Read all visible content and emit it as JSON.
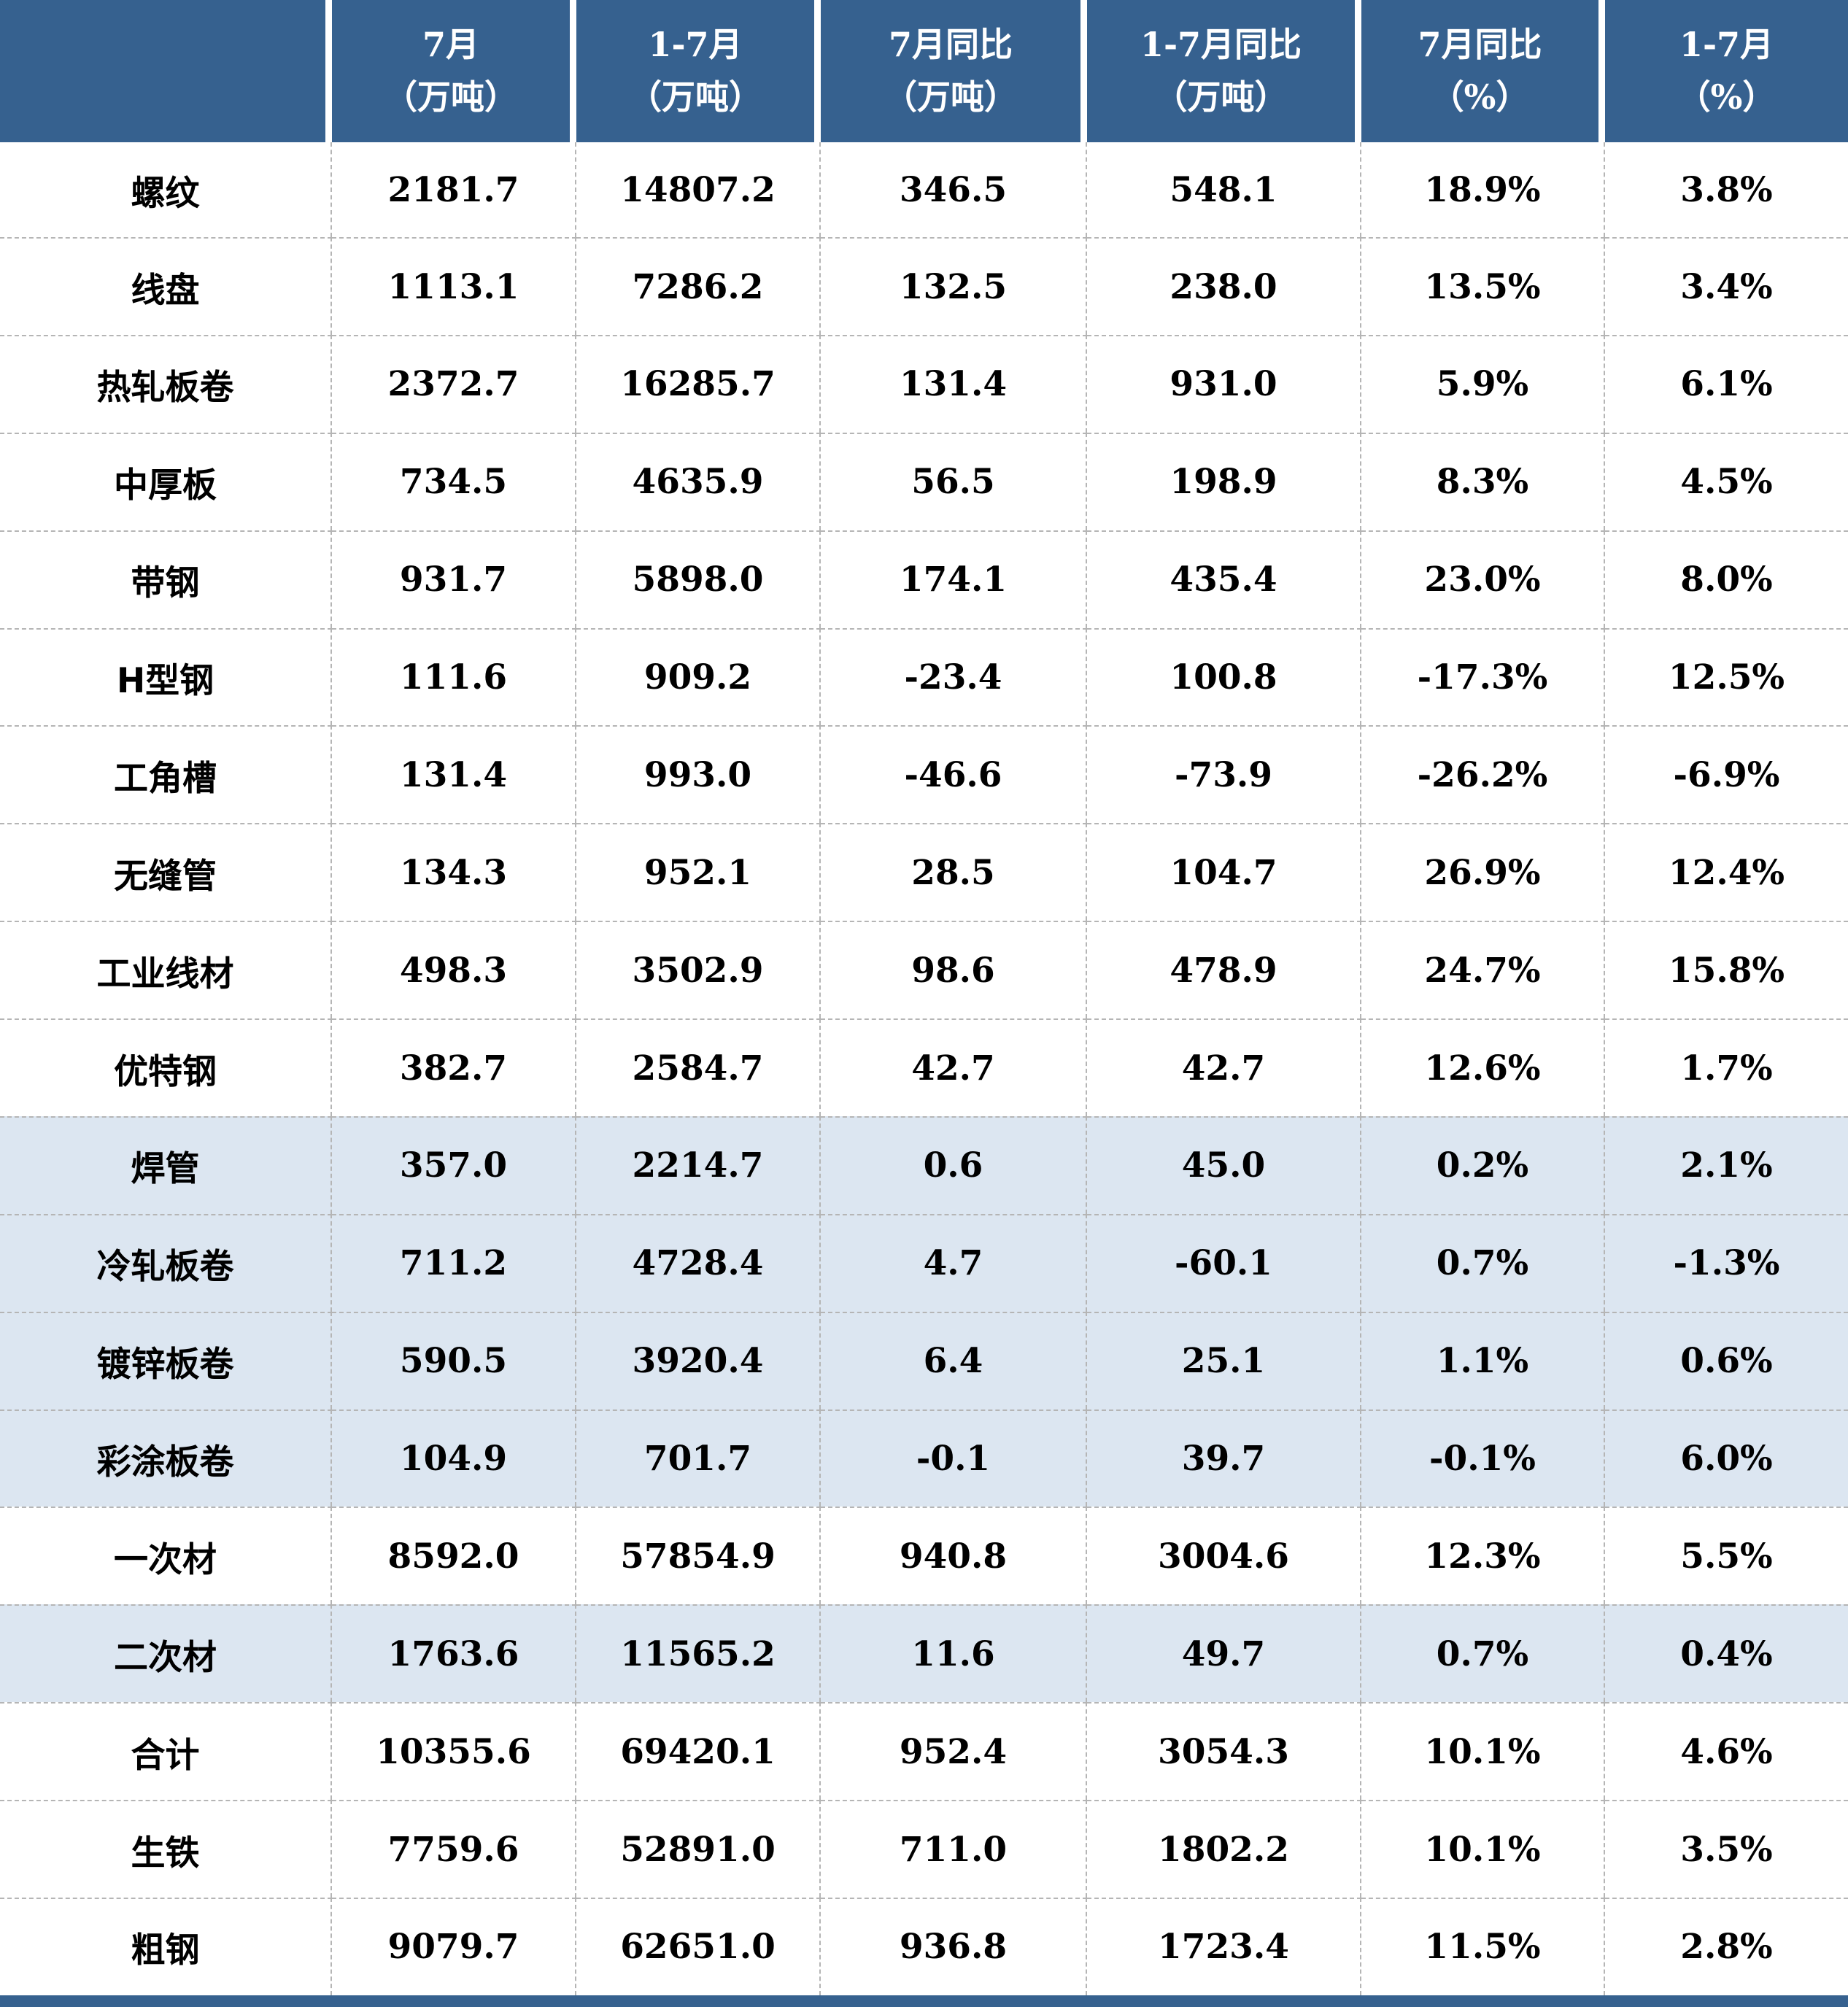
{
  "table": {
    "header": {
      "corner": "",
      "cols": [
        {
          "line1": "7月",
          "line2": "（万吨）"
        },
        {
          "line1": "1-7月",
          "line2": "（万吨）"
        },
        {
          "line1": "7月同比",
          "line2": "（万吨）"
        },
        {
          "line1": "1-7月同比",
          "line2": "（万吨）"
        },
        {
          "line1": "7月同比",
          "line2": "（%）"
        },
        {
          "line1": "1-7月",
          "line2": "（%）"
        }
      ]
    },
    "rows": [
      {
        "label": "螺纹",
        "values": [
          "2181.7",
          "14807.2",
          "346.5",
          "548.1",
          "18.9%",
          "3.8%"
        ],
        "shaded": false
      },
      {
        "label": "线盘",
        "values": [
          "1113.1",
          "7286.2",
          "132.5",
          "238.0",
          "13.5%",
          "3.4%"
        ],
        "shaded": false
      },
      {
        "label": "热轧板卷",
        "values": [
          "2372.7",
          "16285.7",
          "131.4",
          "931.0",
          "5.9%",
          "6.1%"
        ],
        "shaded": false
      },
      {
        "label": "中厚板",
        "values": [
          "734.5",
          "4635.9",
          "56.5",
          "198.9",
          "8.3%",
          "4.5%"
        ],
        "shaded": false
      },
      {
        "label": "带钢",
        "values": [
          "931.7",
          "5898.0",
          "174.1",
          "435.4",
          "23.0%",
          "8.0%"
        ],
        "shaded": false
      },
      {
        "label": "H型钢",
        "values": [
          "111.6",
          "909.2",
          "-23.4",
          "100.8",
          "-17.3%",
          "12.5%"
        ],
        "shaded": false
      },
      {
        "label": "工角槽",
        "values": [
          "131.4",
          "993.0",
          "-46.6",
          "-73.9",
          "-26.2%",
          "-6.9%"
        ],
        "shaded": false
      },
      {
        "label": "无缝管",
        "values": [
          "134.3",
          "952.1",
          "28.5",
          "104.7",
          "26.9%",
          "12.4%"
        ],
        "shaded": false
      },
      {
        "label": "工业线材",
        "values": [
          "498.3",
          "3502.9",
          "98.6",
          "478.9",
          "24.7%",
          "15.8%"
        ],
        "shaded": false
      },
      {
        "label": "优特钢",
        "values": [
          "382.7",
          "2584.7",
          "42.7",
          "42.7",
          "12.6%",
          "1.7%"
        ],
        "shaded": false
      },
      {
        "label": "焊管",
        "values": [
          "357.0",
          "2214.7",
          "0.6",
          "45.0",
          "0.2%",
          "2.1%"
        ],
        "shaded": true
      },
      {
        "label": "冷轧板卷",
        "values": [
          "711.2",
          "4728.4",
          "4.7",
          "-60.1",
          "0.7%",
          "-1.3%"
        ],
        "shaded": true
      },
      {
        "label": "镀锌板卷",
        "values": [
          "590.5",
          "3920.4",
          "6.4",
          "25.1",
          "1.1%",
          "0.6%"
        ],
        "shaded": true
      },
      {
        "label": "彩涂板卷",
        "values": [
          "104.9",
          "701.7",
          "-0.1",
          "39.7",
          "-0.1%",
          "6.0%"
        ],
        "shaded": true
      },
      {
        "label": "一次材",
        "values": [
          "8592.0",
          "57854.9",
          "940.8",
          "3004.6",
          "12.3%",
          "5.5%"
        ],
        "shaded": false
      },
      {
        "label": "二次材",
        "values": [
          "1763.6",
          "11565.2",
          "11.6",
          "49.7",
          "0.7%",
          "0.4%"
        ],
        "shaded": true
      },
      {
        "label": "合计",
        "values": [
          "10355.6",
          "69420.1",
          "952.4",
          "3054.3",
          "10.1%",
          "4.6%"
        ],
        "shaded": false
      },
      {
        "label": "生铁",
        "values": [
          "7759.6",
          "52891.0",
          "711.0",
          "1802.2",
          "10.1%",
          "3.5%"
        ],
        "shaded": false
      },
      {
        "label": "粗钢",
        "values": [
          "9079.7",
          "62651.0",
          "936.8",
          "1723.4",
          "11.5%",
          "2.8%"
        ],
        "shaded": false
      }
    ]
  },
  "colors": {
    "header_bg": "#36618f",
    "shaded_row_bg": "#dce6f1",
    "bottom_bar": "#36618f",
    "grid_line": "#b5b5b5",
    "header_text": "#ffffff",
    "body_text": "#000000"
  },
  "chart_data": {
    "type": "table",
    "title": "",
    "columns": [
      "",
      "7月（万吨）",
      "1-7月（万吨）",
      "7月同比（万吨）",
      "1-7月同比（万吨）",
      "7月同比（%）",
      "1-7月（%）"
    ],
    "rows": [
      [
        "螺纹",
        2181.7,
        14807.2,
        346.5,
        548.1,
        18.9,
        3.8
      ],
      [
        "线盘",
        1113.1,
        7286.2,
        132.5,
        238.0,
        13.5,
        3.4
      ],
      [
        "热轧板卷",
        2372.7,
        16285.7,
        131.4,
        931.0,
        5.9,
        6.1
      ],
      [
        "中厚板",
        734.5,
        4635.9,
        56.5,
        198.9,
        8.3,
        4.5
      ],
      [
        "带钢",
        931.7,
        5898.0,
        174.1,
        435.4,
        23.0,
        8.0
      ],
      [
        "H型钢",
        111.6,
        909.2,
        -23.4,
        100.8,
        -17.3,
        12.5
      ],
      [
        "工角槽",
        131.4,
        993.0,
        -46.6,
        -73.9,
        -26.2,
        -6.9
      ],
      [
        "无缝管",
        134.3,
        952.1,
        28.5,
        104.7,
        26.9,
        12.4
      ],
      [
        "工业线材",
        498.3,
        3502.9,
        98.6,
        478.9,
        24.7,
        15.8
      ],
      [
        "优特钢",
        382.7,
        2584.7,
        42.7,
        42.7,
        12.6,
        1.7
      ],
      [
        "焊管",
        357.0,
        2214.7,
        0.6,
        45.0,
        0.2,
        2.1
      ],
      [
        "冷轧板卷",
        711.2,
        4728.4,
        4.7,
        -60.1,
        0.7,
        -1.3
      ],
      [
        "镀锌板卷",
        590.5,
        3920.4,
        6.4,
        25.1,
        1.1,
        0.6
      ],
      [
        "彩涂板卷",
        104.9,
        701.7,
        -0.1,
        39.7,
        -0.1,
        6.0
      ],
      [
        "一次材",
        8592.0,
        57854.9,
        940.8,
        3004.6,
        12.3,
        5.5
      ],
      [
        "二次材",
        1763.6,
        11565.2,
        11.6,
        49.7,
        0.7,
        0.4
      ],
      [
        "合计",
        10355.6,
        69420.1,
        952.4,
        3054.3,
        10.1,
        4.6
      ],
      [
        "生铁",
        7759.6,
        52891.0,
        711.0,
        1802.2,
        10.1,
        3.5
      ],
      [
        "粗钢",
        9079.7,
        62651.0,
        936.8,
        1723.4,
        11.5,
        2.8
      ]
    ]
  }
}
